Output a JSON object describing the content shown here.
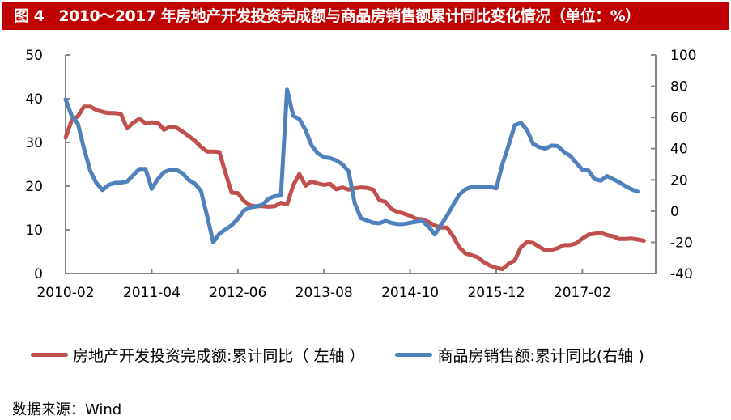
{
  "title": {
    "figure_label": "图 4",
    "text": "2010～2017 年房地产开发投资完成额与商品房销售额累计同比变化情况（单位：%）"
  },
  "legend": {
    "series1": "房地产开发投资完成额:累计同比（ 左轴 ）",
    "series2": "商品房销售额:累计同比(右轴 )"
  },
  "source": "数据来源：Wind",
  "colors": {
    "title_bg": "#c00000",
    "series1": "#c0504d",
    "series2": "#4f81bd",
    "axis": "#868686"
  },
  "chart_data": {
    "type": "line",
    "title": "2010～2017 年房地产开发投资完成额与商品房销售额累计同比变化情况（单位：%）",
    "xlabel": "",
    "ylabel_left": "%",
    "ylabel_right": "%",
    "x_tick_labels": [
      "2010-02",
      "2011-04",
      "2012-06",
      "2013-08",
      "2014-10",
      "2015-12",
      "2017-02"
    ],
    "ylim_left": [
      0,
      50
    ],
    "yticks_left": [
      0,
      10,
      20,
      30,
      40,
      50
    ],
    "ylim_right": [
      -40,
      100
    ],
    "yticks_right": [
      -40,
      -20,
      0,
      20,
      40,
      60,
      80,
      100
    ],
    "grid": false,
    "legend_position": "bottom",
    "series": [
      {
        "name": "房地产开发投资完成额:累计同比（左轴）",
        "axis": "left",
        "color": "#c0504d",
        "points": [
          [
            0,
            31.1
          ],
          [
            1,
            35.1
          ],
          [
            2,
            36.0
          ],
          [
            3,
            38.2
          ],
          [
            4,
            38.2
          ],
          [
            5,
            37.4
          ],
          [
            6,
            37.0
          ],
          [
            7,
            36.7
          ],
          [
            8,
            36.7
          ],
          [
            9,
            36.5
          ],
          [
            10,
            33.2
          ],
          [
            11,
            34.5
          ],
          [
            12,
            35.4
          ],
          [
            13,
            34.4
          ],
          [
            14,
            34.6
          ],
          [
            15,
            34.5
          ],
          [
            16,
            32.9
          ],
          [
            17,
            33.6
          ],
          [
            18,
            33.4
          ],
          [
            19,
            32.5
          ],
          [
            20,
            31.5
          ],
          [
            21,
            30.4
          ],
          [
            22,
            29.0
          ],
          [
            23,
            27.9
          ],
          [
            24,
            27.9
          ],
          [
            25,
            27.8
          ],
          [
            26,
            23.0
          ],
          [
            27,
            18.5
          ],
          [
            28,
            18.4
          ],
          [
            29,
            16.6
          ],
          [
            30,
            15.6
          ],
          [
            31,
            15.4
          ],
          [
            32,
            15.4
          ],
          [
            33,
            15.3
          ],
          [
            34,
            15.4
          ],
          [
            35,
            16.2
          ],
          [
            36,
            15.8
          ],
          [
            37,
            20.2
          ],
          [
            38,
            22.8
          ],
          [
            39,
            20.1
          ],
          [
            40,
            21.1
          ],
          [
            41,
            20.6
          ],
          [
            42,
            20.3
          ],
          [
            43,
            20.5
          ],
          [
            44,
            19.3
          ],
          [
            45,
            19.7
          ],
          [
            46,
            19.2
          ],
          [
            47,
            19.5
          ],
          [
            48,
            19.7
          ],
          [
            49,
            19.6
          ],
          [
            50,
            19.2
          ],
          [
            51,
            16.8
          ],
          [
            52,
            16.4
          ],
          [
            53,
            14.7
          ],
          [
            54,
            14.1
          ],
          [
            55,
            13.7
          ],
          [
            56,
            13.2
          ],
          [
            57,
            12.5
          ],
          [
            58,
            12.4
          ],
          [
            59,
            11.8
          ],
          [
            60,
            11.0
          ],
          [
            61,
            10.5
          ],
          [
            62,
            10.5
          ],
          [
            63,
            8.5
          ],
          [
            64,
            6.0
          ],
          [
            65,
            4.6
          ],
          [
            66,
            4.2
          ],
          [
            67,
            3.7
          ],
          [
            68,
            2.6
          ],
          [
            69,
            1.8
          ],
          [
            70,
            1.3
          ],
          [
            71,
            1.0
          ],
          [
            72,
            2.2
          ],
          [
            73,
            3.0
          ],
          [
            74,
            6.0
          ],
          [
            75,
            7.2
          ],
          [
            76,
            7.0
          ],
          [
            77,
            6.1
          ],
          [
            78,
            5.3
          ],
          [
            79,
            5.4
          ],
          [
            80,
            5.8
          ],
          [
            81,
            6.5
          ],
          [
            82,
            6.5
          ],
          [
            83,
            6.9
          ],
          [
            84,
            8.0
          ],
          [
            85,
            8.9
          ],
          [
            86,
            9.1
          ],
          [
            87,
            9.3
          ],
          [
            88,
            8.8
          ],
          [
            89,
            8.5
          ],
          [
            90,
            7.9
          ],
          [
            91,
            7.9
          ],
          [
            92,
            8.0
          ],
          [
            93,
            7.8
          ],
          [
            94,
            7.5
          ]
        ]
      },
      {
        "name": "商品房销售额:累计同比(右轴)",
        "axis": "right",
        "color": "#4f81bd",
        "points": [
          [
            0,
            71.6
          ],
          [
            1,
            61.0
          ],
          [
            2,
            56.0
          ],
          [
            3,
            40.0
          ],
          [
            4,
            26.0
          ],
          [
            5,
            18.0
          ],
          [
            6,
            13.5
          ],
          [
            7,
            16.8
          ],
          [
            8,
            18.0
          ],
          [
            9,
            18.2
          ],
          [
            10,
            19.0
          ],
          [
            11,
            23.0
          ],
          [
            12,
            27.0
          ],
          [
            13,
            27.0
          ],
          [
            14,
            14.3
          ],
          [
            15,
            20.5
          ],
          [
            16,
            25.0
          ],
          [
            17,
            26.5
          ],
          [
            18,
            26.5
          ],
          [
            19,
            24.3
          ],
          [
            20,
            20.0
          ],
          [
            21,
            17.6
          ],
          [
            22,
            13.0
          ],
          [
            23,
            -3.0
          ],
          [
            24,
            -20.0
          ],
          [
            25,
            -14.5
          ],
          [
            26,
            -11.8
          ],
          [
            27,
            -9.0
          ],
          [
            28,
            -5.0
          ],
          [
            29,
            0.5
          ],
          [
            30,
            2.3
          ],
          [
            31,
            3.0
          ],
          [
            32,
            4.0
          ],
          [
            33,
            8.0
          ],
          [
            34,
            9.5
          ],
          [
            35,
            10.0
          ],
          [
            36,
            77.8
          ],
          [
            37,
            61.0
          ],
          [
            38,
            59.0
          ],
          [
            39,
            52.0
          ],
          [
            40,
            42.0
          ],
          [
            41,
            37.0
          ],
          [
            42,
            34.5
          ],
          [
            43,
            34.0
          ],
          [
            44,
            32.5
          ],
          [
            45,
            30.0
          ],
          [
            46,
            25.5
          ],
          [
            47,
            5.0
          ],
          [
            48,
            -4.5
          ],
          [
            49,
            -6.0
          ],
          [
            50,
            -7.5
          ],
          [
            51,
            -7.8
          ],
          [
            52,
            -6.3
          ],
          [
            53,
            -7.6
          ],
          [
            54,
            -8.3
          ],
          [
            55,
            -8.2
          ],
          [
            56,
            -7.5
          ],
          [
            57,
            -6.8
          ],
          [
            58,
            -6.3
          ],
          [
            59,
            -10.0
          ],
          [
            60,
            -15.0
          ],
          [
            61,
            -9.0
          ],
          [
            62,
            -3.0
          ],
          [
            63,
            4.0
          ],
          [
            64,
            10.5
          ],
          [
            65,
            14.0
          ],
          [
            66,
            15.5
          ],
          [
            67,
            15.5
          ],
          [
            68,
            15.2
          ],
          [
            69,
            15.4
          ],
          [
            70,
            14.6
          ],
          [
            71,
            30.0
          ],
          [
            72,
            42.0
          ],
          [
            73,
            55.0
          ],
          [
            74,
            56.5
          ],
          [
            75,
            52.0
          ],
          [
            76,
            43.0
          ],
          [
            77,
            41.0
          ],
          [
            78,
            40.0
          ],
          [
            79,
            42.0
          ],
          [
            80,
            41.7
          ],
          [
            81,
            38.0
          ],
          [
            82,
            35.5
          ],
          [
            83,
            31.0
          ],
          [
            84,
            26.5
          ],
          [
            85,
            26.0
          ],
          [
            86,
            20.5
          ],
          [
            87,
            19.5
          ],
          [
            88,
            22.5
          ],
          [
            89,
            20.5
          ],
          [
            90,
            18.5
          ],
          [
            91,
            16.0
          ],
          [
            92,
            14.0
          ],
          [
            93,
            12.5
          ]
        ]
      }
    ]
  }
}
